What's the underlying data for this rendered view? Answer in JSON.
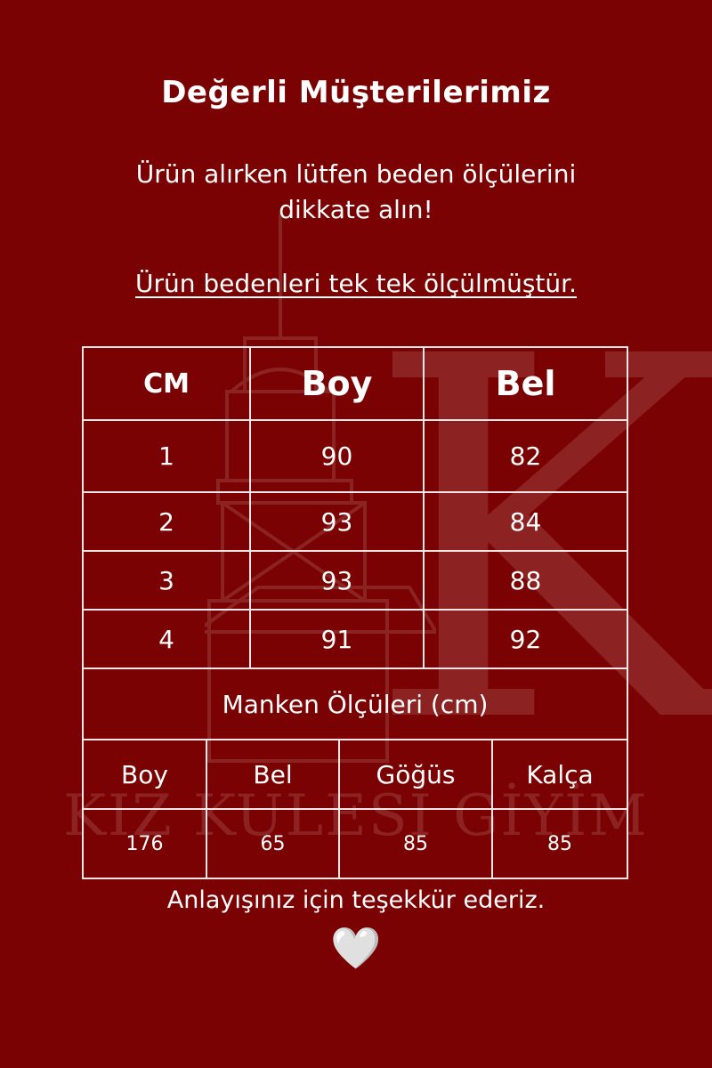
{
  "title": "Değerli Müşterilerimiz",
  "subtitle": "Ürün alırken lütfen beden ölçülerini dikkate alın!",
  "note": "Ürün bedenleri tek tek ölçülmüştür.",
  "size_table": {
    "headers": [
      "CM",
      "Boy",
      "Bel"
    ],
    "rows": [
      [
        "1",
        "90",
        "82"
      ],
      [
        "2",
        "93",
        "84"
      ],
      [
        "3",
        "93",
        "88"
      ],
      [
        "4",
        "91",
        "92"
      ]
    ]
  },
  "model": {
    "title": "Manken Ölçüleri (cm)",
    "headers": [
      "Boy",
      "Bel",
      "Göğüs",
      "Kalça"
    ],
    "values": [
      "176",
      "65",
      "85",
      "85"
    ]
  },
  "thanks": "Anlayışınız için teşekkür ederiz.",
  "heart": "🤍",
  "watermark": {
    "letter": "K",
    "text": "KIZ KULESİ GİYİM"
  },
  "colors": {
    "background": "#7b0202",
    "text": "#ffffff"
  }
}
